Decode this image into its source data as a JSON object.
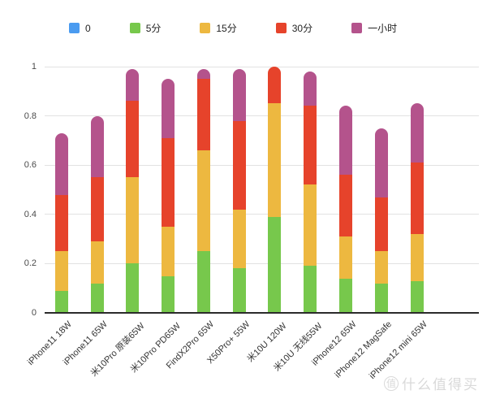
{
  "legend": {
    "items": [
      {
        "name": "series-0",
        "label": "0",
        "color": "#4a9bf0"
      },
      {
        "name": "series-5min",
        "label": "5分",
        "color": "#77c84c"
      },
      {
        "name": "series-15min",
        "label": "15分",
        "color": "#edb840"
      },
      {
        "name": "series-30min",
        "label": "30分",
        "color": "#e6432b"
      },
      {
        "name": "series-1hour",
        "label": "一小时",
        "color": "#b4538c"
      }
    ]
  },
  "chart_data": {
    "type": "bar",
    "subtype": "stacked-vertical-rounded-top",
    "title": "",
    "xlabel": "",
    "ylabel": "",
    "ylim": [
      0,
      1
    ],
    "grid": true,
    "legend_position": "top",
    "categories": [
      "iPhone11 18W",
      "iPhone11 65W",
      "米10Pro 原装65W",
      "米10Pro PD65W",
      "FindX2Pro 65W",
      "X50Pro+ 55W",
      "米10U 120W",
      "米10U 无线55W",
      "iPhone12 65W",
      "iPhone12 MagSafe",
      "iPhone12 mini 65W"
    ],
    "series_note": "values are cumulative battery level (0-1) reached at each elapsed time; each colored segment spans from the previous series value up to its own value",
    "series": [
      {
        "name": "0",
        "color": "#4a9bf0",
        "cumulative": [
          0,
          0,
          0,
          0,
          0,
          0,
          0,
          0,
          0,
          0,
          0
        ]
      },
      {
        "name": "5分",
        "color": "#77c84c",
        "cumulative": [
          0.09,
          0.12,
          0.2,
          0.15,
          0.25,
          0.18,
          0.39,
          0.19,
          0.14,
          0.12,
          0.13
        ]
      },
      {
        "name": "15分",
        "color": "#edb840",
        "cumulative": [
          0.25,
          0.29,
          0.55,
          0.35,
          0.66,
          0.42,
          0.85,
          0.52,
          0.31,
          0.25,
          0.32
        ]
      },
      {
        "name": "30分",
        "color": "#e6432b",
        "cumulative": [
          0.48,
          0.55,
          0.86,
          0.71,
          0.95,
          0.78,
          1.0,
          0.84,
          0.56,
          0.47,
          0.61
        ]
      },
      {
        "name": "一小时",
        "color": "#b4538c",
        "cumulative": [
          0.73,
          0.8,
          0.99,
          0.95,
          0.99,
          0.99,
          1.0,
          0.98,
          0.84,
          0.75,
          0.85
        ]
      }
    ],
    "yticks": [
      {
        "value": 0,
        "label": "0"
      },
      {
        "value": 0.2,
        "label": "0.2"
      },
      {
        "value": 0.4,
        "label": "0.4"
      },
      {
        "value": 0.6,
        "label": "0.6"
      },
      {
        "value": 0.8,
        "label": "0.8"
      },
      {
        "value": 1,
        "label": "1"
      }
    ]
  },
  "watermark": {
    "logo_char": "值",
    "text": "什么值得买"
  }
}
